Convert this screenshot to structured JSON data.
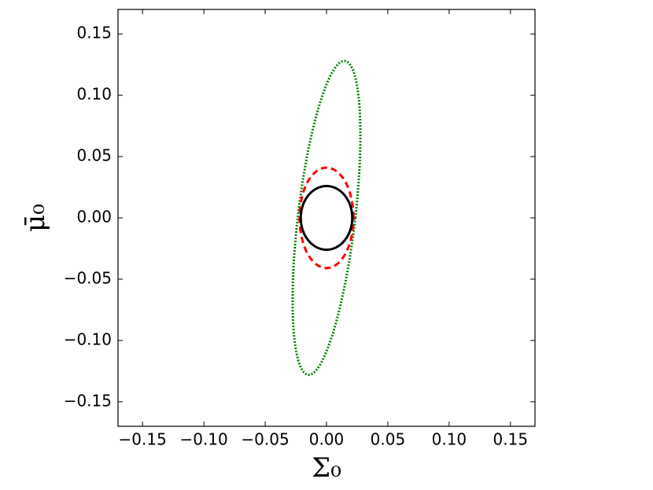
{
  "chart_data": {
    "type": "contour",
    "x_label": "Σ₀",
    "y_label": "μ̄₀",
    "xlim": [
      -0.17,
      0.17
    ],
    "ylim": [
      -0.17,
      0.17
    ],
    "xticks": [
      {
        "value": -0.15,
        "label": "−0.15"
      },
      {
        "value": -0.1,
        "label": "−0.10"
      },
      {
        "value": -0.05,
        "label": "−0.05"
      },
      {
        "value": 0,
        "label": "0.00"
      },
      0.05,
      {
        "value": 0.1,
        "label": "0.10"
      },
      0.15
    ],
    "yticks": [
      {
        "value": -0.15,
        "label": "−0.15"
      },
      {
        "value": -0.1,
        "label": "−0.10"
      },
      {
        "value": -0.05,
        "label": "−0.05"
      },
      {
        "value": 0,
        "label": "0.00"
      },
      0.05,
      {
        "value": 0.1,
        "label": "0.10"
      },
      0.15
    ],
    "series": [
      {
        "color": "#008000",
        "style": "dotted",
        "x": [
          0.0235,
          0.0273,
          0.0269,
          0.0224,
          0.0145,
          0.0044,
          -0.0063,
          -0.0161,
          -0.0235,
          -0.0273,
          -0.0269,
          -0.0224,
          -0.0145,
          -0.0044,
          0.0063,
          0.0161
        ],
        "values": [
          0,
          0.049,
          0.0905,
          0.1183,
          0.128,
          0.1183,
          0.0905,
          0.049,
          0,
          -0.049,
          -0.0905,
          -0.1183,
          -0.128,
          -0.1183,
          -0.0905,
          -0.049
        ]
      },
      {
        "color": "#ff0000",
        "style": "dashed",
        "x": [
          0.022,
          0.0203,
          0.0156,
          0.0084,
          0,
          -0.0084,
          -0.0156,
          -0.0203,
          -0.022,
          -0.0203,
          -0.0156,
          -0.0084,
          0,
          0.0084,
          0.0156,
          0.0203
        ],
        "values": [
          0,
          0.0157,
          0.029,
          0.0379,
          0.041,
          0.0379,
          0.029,
          0.0157,
          0,
          -0.0157,
          -0.029,
          -0.0379,
          -0.041,
          -0.0379,
          -0.029,
          -0.0157
        ]
      },
      {
        "color": "#000000",
        "style": "solid",
        "x": [
          0.021,
          0.0194,
          0.0148,
          0.008,
          0,
          -0.008,
          -0.0148,
          -0.0194,
          -0.021,
          -0.0194,
          -0.0148,
          -0.008,
          0,
          0.008,
          0.0148,
          0.0194
        ],
        "values": [
          0,
          0.01,
          0.0184,
          0.024,
          0.026,
          0.024,
          0.0184,
          0.01,
          0,
          -0.01,
          -0.0184,
          -0.024,
          -0.026,
          -0.024,
          -0.0184,
          -0.01
        ]
      }
    ]
  }
}
